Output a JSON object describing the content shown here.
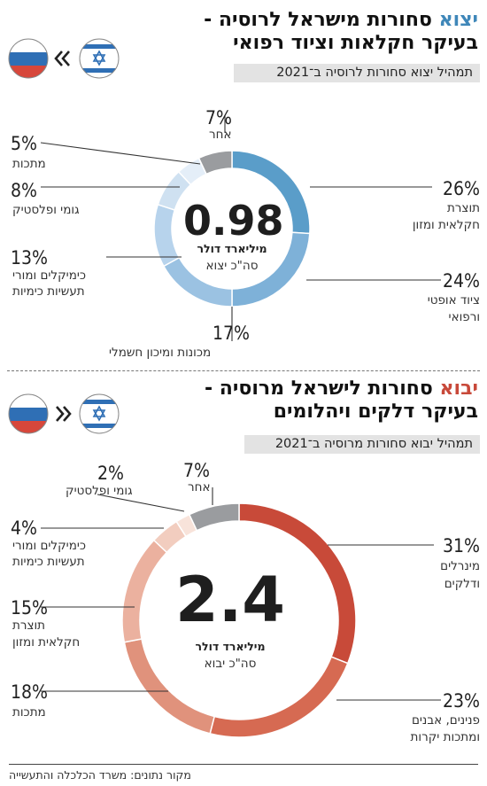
{
  "export": {
    "title_accent": "יצוא",
    "title_rest": " סחורות מישראל לרוסיה -",
    "title_line2": "בעיקר חקלאות וציוד רפואי",
    "subtitle": "תמהיל יצוא סחורות לרוסיה ב־2021",
    "flow_icon": "double-chevron-left-icon",
    "center_value": "0.98",
    "center_unit": "מיליארד דולר",
    "center_sub": "סה\"כ יצוא",
    "chart_data": {
      "type": "pie",
      "categories": [
        "תוצרת חקלאית ומזון",
        "ציוד אופטי ורפואי",
        "מכונות ומיכון חשמלי",
        "כימיקלים ומורי תעשיות כימיות",
        "גומי ופלסטיק",
        "מתכות",
        "אחר"
      ],
      "values": [
        26,
        24,
        17,
        13,
        8,
        5,
        7
      ],
      "colors": [
        "#5a9dc9",
        "#7eb1d8",
        "#9bc2e2",
        "#b7d3ec",
        "#cfe1f1",
        "#e4eef8",
        "#9a9c9f"
      ]
    },
    "items": [
      {
        "pct": "26%",
        "l1": "תוצרת",
        "l2": "חקלאית ומזון"
      },
      {
        "pct": "24%",
        "l1": "ציוד אופטי",
        "l2": "ורפואי"
      },
      {
        "pct": "17%",
        "l1": "מכונות ומיכון חשמלי"
      },
      {
        "pct": "13%",
        "l1": "כימיקלים ומורי",
        "l2": "תעשיות כימיות"
      },
      {
        "pct": "8%",
        "l1": "גומי ופלסטיק"
      },
      {
        "pct": "5%",
        "l1": "מתכות"
      },
      {
        "pct": "7%",
        "l1": "אחר"
      }
    ]
  },
  "import": {
    "title_accent": "יבוא",
    "title_rest": " סחורות לישראל מרוסיה -",
    "title_line2": "בעיקר דלקים ויהלומים",
    "subtitle": "תמהיל יבוא סחורות מרוסיה ב־2021",
    "flow_icon": "double-chevron-right-icon",
    "center_value": "2.4",
    "center_unit": "מיליארד דולר",
    "center_sub": "סה\"כ יבוא",
    "chart_data": {
      "type": "pie",
      "categories": [
        "מינרלים ודלקים",
        "פנינים, אבנים ומתכות יקרות",
        "מתכות",
        "תוצרת חקלאית ומזון",
        "כימיקלים ומורי תעשיות כימיות",
        "גומי ופלסטיק",
        "אחר"
      ],
      "values": [
        31,
        23,
        18,
        15,
        4,
        2,
        7
      ],
      "colors": [
        "#c84a39",
        "#d66a52",
        "#e0927c",
        "#ebb19f",
        "#f2cdbf",
        "#f8e3da",
        "#9a9c9f"
      ]
    },
    "items": [
      {
        "pct": "31%",
        "l1": "מינרלים",
        "l2": "ודלקים"
      },
      {
        "pct": "23%",
        "l1": "פנינים, אבנים",
        "l2": "ומתכות יקרות"
      },
      {
        "pct": "18%",
        "l1": "מתכות"
      },
      {
        "pct": "15%",
        "l1": "תוצרת",
        "l2": "חקלאית ומזון"
      },
      {
        "pct": "4%",
        "l1": "כימיקלים ומורי",
        "l2": "תעשיות כימיות"
      },
      {
        "pct": "2%",
        "l1": "גומי ופלסטיק"
      },
      {
        "pct": "7%",
        "l1": "אחר"
      }
    ]
  },
  "flags": {
    "israel": "israel-flag-icon",
    "russia": "russia-flag-icon"
  },
  "source": "מקור נתונים: משרד הכלכלה והתעשייה"
}
